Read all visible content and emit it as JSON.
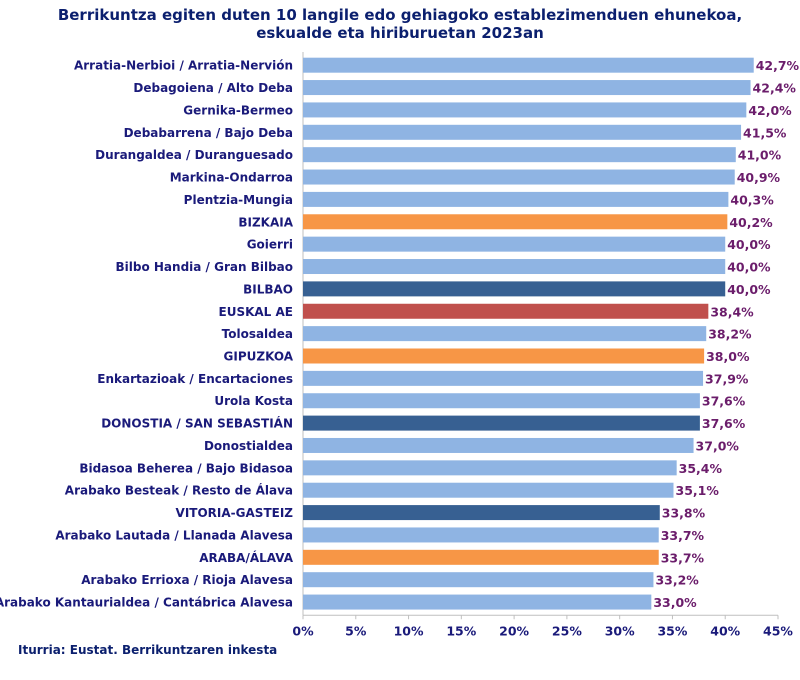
{
  "chart_data": {
    "type": "bar",
    "orientation": "horizontal",
    "title": [
      "Berrikuntza egiten duten 10 langile edo gehiagoko establezimenduen ehunekoa,",
      "eskualde eta hiriburuetan 2023an"
    ],
    "source": "Iturria: Eustat. Berrikuntzaren inkesta",
    "xlim": [
      0,
      45
    ],
    "xticks": [
      "0%",
      "5%",
      "10%",
      "15%",
      "20%",
      "25%",
      "30%",
      "35%",
      "40%",
      "45%"
    ],
    "colors": {
      "comarca": "#8fb4e3",
      "province": "#f79646",
      "capital": "#376092",
      "total": "#c0504d"
    },
    "categories": [
      {
        "label": "Arratia-Nerbioi / Arratia-Nervión",
        "value": 42.7,
        "display": "42,7%",
        "kind": "comarca",
        "bold": false
      },
      {
        "label": "Debagoiena  /  Alto Deba",
        "value": 42.4,
        "display": "42,4%",
        "kind": "comarca",
        "bold": false
      },
      {
        "label": "Gernika-Bermeo",
        "value": 42.0,
        "display": "42,0%",
        "kind": "comarca",
        "bold": false
      },
      {
        "label": "Debabarrena / Bajo Deba",
        "value": 41.5,
        "display": "41,5%",
        "kind": "comarca",
        "bold": false
      },
      {
        "label": "Durangaldea  /  Duranguesado",
        "value": 41.0,
        "display": "41,0%",
        "kind": "comarca",
        "bold": false
      },
      {
        "label": "Markina-Ondarroa",
        "value": 40.9,
        "display": "40,9%",
        "kind": "comarca",
        "bold": false
      },
      {
        "label": "Plentzia-Mungia",
        "value": 40.3,
        "display": "40,3%",
        "kind": "comarca",
        "bold": false
      },
      {
        "label": "BIZKAIA",
        "value": 40.2,
        "display": "40,2%",
        "kind": "province",
        "bold": true
      },
      {
        "label": "Goierri",
        "value": 40.0,
        "display": "40,0%",
        "kind": "comarca",
        "bold": false
      },
      {
        "label": "Bilbo Handia  /  Gran Bilbao",
        "value": 40.0,
        "display": "40,0%",
        "kind": "comarca",
        "bold": false
      },
      {
        "label": "BILBAO",
        "value": 40.0,
        "display": "40,0%",
        "kind": "capital",
        "bold": true
      },
      {
        "label": "EUSKAL AE",
        "value": 38.4,
        "display": "38,4%",
        "kind": "total",
        "bold": true
      },
      {
        "label": "Tolosaldea",
        "value": 38.2,
        "display": "38,2%",
        "kind": "comarca",
        "bold": false
      },
      {
        "label": "GIPUZKOA",
        "value": 38.0,
        "display": "38,0%",
        "kind": "province",
        "bold": true
      },
      {
        "label": "Enkartazioak  /  Encartaciones",
        "value": 37.9,
        "display": "37,9%",
        "kind": "comarca",
        "bold": false
      },
      {
        "label": "Urola Kosta",
        "value": 37.6,
        "display": "37,6%",
        "kind": "comarca",
        "bold": false
      },
      {
        "label": "DONOSTIA / SAN SEBASTIÁN",
        "value": 37.6,
        "display": "37,6%",
        "kind": "capital",
        "bold": true
      },
      {
        "label": "Donostialdea",
        "value": 37.0,
        "display": "37,0%",
        "kind": "comarca",
        "bold": false
      },
      {
        "label": "Bidasoa Beherea  /  Bajo Bidasoa",
        "value": 35.4,
        "display": "35,4%",
        "kind": "comarca",
        "bold": false
      },
      {
        "label": "Arabako Besteak / Resto de Álava",
        "value": 35.1,
        "display": "35,1%",
        "kind": "comarca",
        "bold": false
      },
      {
        "label": "VITORIA-GASTEIZ",
        "value": 33.8,
        "display": "33,8%",
        "kind": "capital",
        "bold": true
      },
      {
        "label": "Arabako Lautada  /  Llanada Alavesa",
        "value": 33.7,
        "display": "33,7%",
        "kind": "comarca",
        "bold": false
      },
      {
        "label": "ARABA/ÁLAVA",
        "value": 33.7,
        "display": "33,7%",
        "kind": "province",
        "bold": true
      },
      {
        "label": "Arabako Errioxa / Rioja Alavesa",
        "value": 33.2,
        "display": "33,2%",
        "kind": "comarca",
        "bold": false
      },
      {
        "label": "Arabako Kantaurialdea / Cantábrica Alavesa",
        "value": 33.0,
        "display": "33,0%",
        "kind": "comarca",
        "bold": false
      }
    ]
  }
}
